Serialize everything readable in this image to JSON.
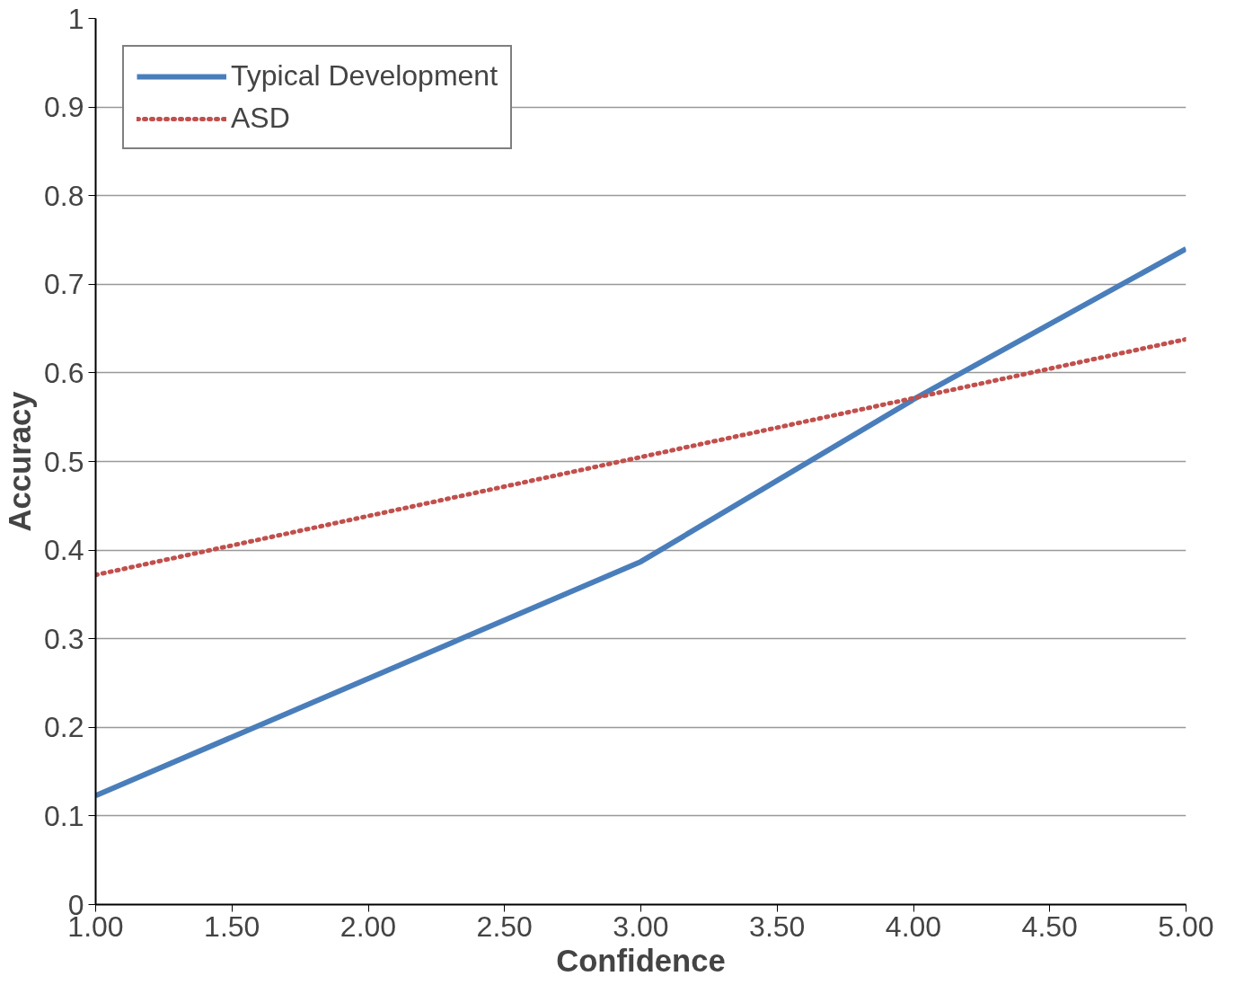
{
  "chart_data": {
    "type": "line",
    "xlabel": "Confidence",
    "ylabel": "Accuracy",
    "xlim": [
      1,
      5
    ],
    "xticks": [
      {
        "value": 1,
        "label": "1.00"
      },
      {
        "value": 1.5,
        "label": "1.50"
      },
      {
        "value": 2,
        "label": "2.00"
      },
      {
        "value": 2.5,
        "label": "2.50"
      },
      {
        "value": 3,
        "label": "3.00"
      },
      {
        "value": 3.5,
        "label": "3.50"
      },
      {
        "value": 4,
        "label": "4.00"
      },
      {
        "value": 4.5,
        "label": "4.50"
      },
      {
        "value": 5,
        "label": "5.00"
      }
    ],
    "ylim": [
      0,
      1
    ],
    "yticks": [
      0,
      0.1,
      0.2,
      0.3,
      0.4,
      0.5,
      0.6,
      0.7,
      0.8,
      0.9,
      1
    ],
    "x": [
      1,
      3,
      4,
      5
    ],
    "series": [
      {
        "name": "Typical Development",
        "color": "#4a7ebb",
        "values": [
          0.123,
          0.387,
          0.57,
          0.74
        ],
        "line_style": "solid"
      },
      {
        "name": "ASD",
        "color": "#c0504d",
        "x": [
          1,
          5
        ],
        "values": [
          0.372,
          0.638
        ],
        "line_style": "dotted"
      }
    ],
    "grid": "y",
    "legend": "top left",
    "marker": "none"
  }
}
